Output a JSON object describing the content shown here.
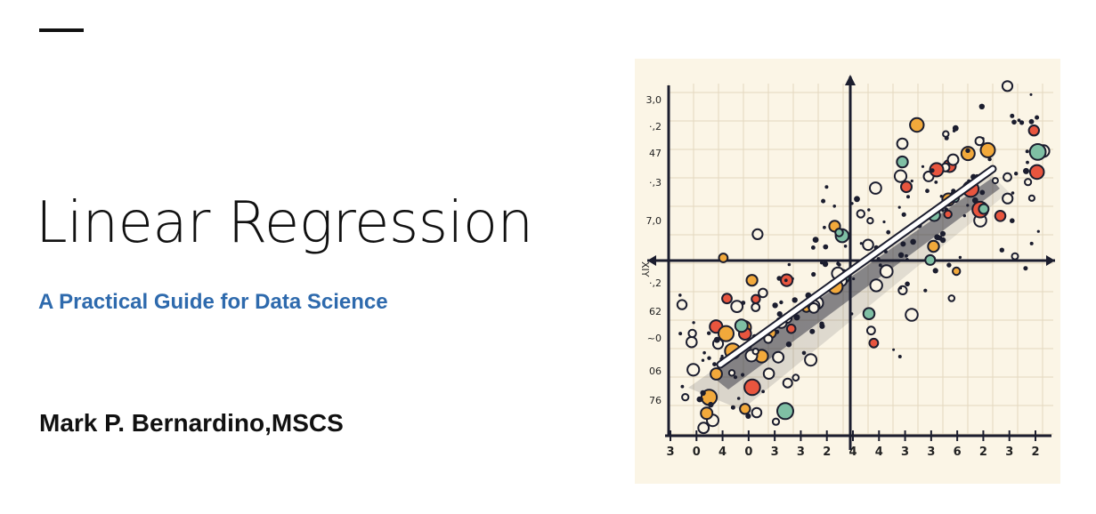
{
  "slide": {
    "title": "Linear Regression",
    "subtitle": "A Practical Guide for Data Science",
    "author": "Mark P. Bernardino,MSCS"
  },
  "colors": {
    "subtitle": "#2e6aad",
    "text": "#111111",
    "illustration_background": "#fbf5e6",
    "grid": "#e3d8bf",
    "regression_line": "#ffffff",
    "point_red": "#e8553e",
    "point_green": "#7fbfa4",
    "point_orange": "#f2a93b",
    "point_dark": "#1b1d2e"
  },
  "illustration": {
    "y_tick_labels": [
      "3,0",
      "·,2",
      "47",
      "·,3",
      "7,0",
      "·,2",
      "62",
      "~0",
      "06",
      "76"
    ],
    "y_axis_label": "XIY",
    "x_tick_labels": [
      "3",
      "0",
      "4",
      "0",
      "3",
      "3",
      "2",
      "4",
      "4",
      "3",
      "3",
      "6",
      "2",
      "3",
      "2"
    ]
  }
}
